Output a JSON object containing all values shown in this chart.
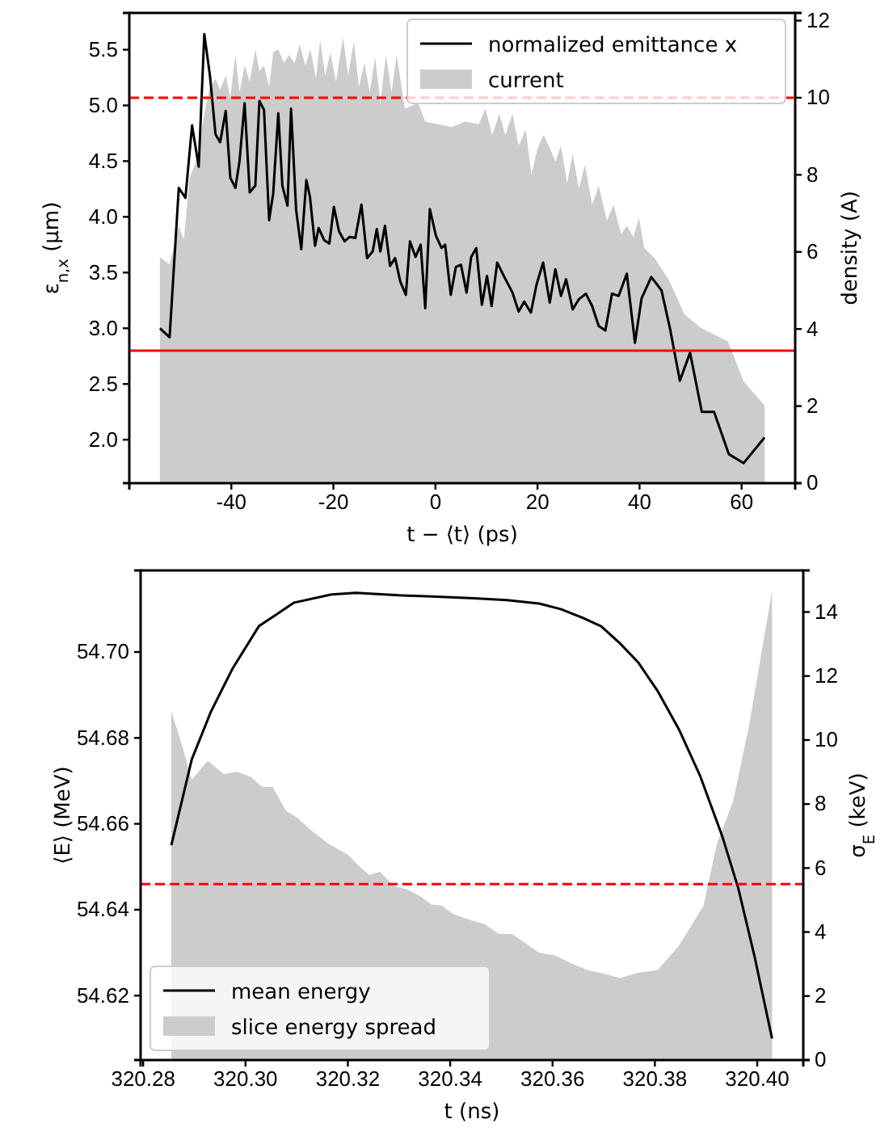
{
  "chart_data": [
    {
      "type": "line",
      "xlabel": "t − ⟨t⟩ (ps)",
      "ylabel": "ε$_{n,x}$ (µm)",
      "y2label": "density (A)",
      "legend": "top right",
      "xlim": [
        -60,
        70.5
      ],
      "xticks": [
        -40,
        -20,
        0,
        20,
        40,
        60
      ],
      "ylim": [
        1.61,
        5.83
      ],
      "yticks": [
        {
          "value": 2,
          "label": "2.0"
        },
        2.5,
        {
          "value": 3,
          "label": "3.0"
        },
        3.5,
        {
          "value": 4,
          "label": "4.0"
        },
        4.5,
        {
          "value": 5,
          "label": "5.0"
        },
        5.5
      ],
      "y2lim": [
        0,
        12.2
      ],
      "y2ticks": [
        0,
        2,
        4,
        6,
        8,
        10,
        12
      ],
      "ref_lines": [
        {
          "axis": "y2",
          "value": 10,
          "color": "#ff0000",
          "line_style": "dashed"
        },
        {
          "axis": "y",
          "value": 2.8,
          "color": "#ff0000",
          "line_style": "solid"
        }
      ],
      "series": [
        {
          "name": "current",
          "type": "area",
          "axis": "y2",
          "color": "#cccccc",
          "x": [
            -54.0,
            -52.1,
            -50.3,
            -49.3,
            -48.2,
            -46.6,
            -45.3,
            -44.2,
            -43.1,
            -42.2,
            -41.1,
            -40.2,
            -39.2,
            -38.4,
            -37.4,
            -36.4,
            -35.3,
            -34.5,
            -33.6,
            -32.6,
            -31.8,
            -30.8,
            -29.7,
            -28.7,
            -27.6,
            -26.6,
            -25.5,
            -24.5,
            -23.4,
            -22.6,
            -21.6,
            -20.6,
            -19.5,
            -18.1,
            -17.1,
            -16.0,
            -15.0,
            -13.9,
            -12.9,
            -11.8,
            -10.8,
            -9.7,
            -8.6,
            -7.6,
            -6.0,
            -3.4,
            -2.0,
            0.5,
            3.2,
            5.8,
            8.5,
            9.8,
            11.1,
            12.5,
            13.7,
            15.1,
            16.3,
            17.7,
            18.8,
            20.0,
            21.2,
            22.5,
            23.5,
            24.6,
            25.8,
            26.9,
            28.1,
            29.3,
            30.7,
            32.0,
            33.6,
            34.9,
            36.4,
            37.5,
            38.8,
            39.9,
            40.9,
            43.0,
            45.7,
            48.8,
            52.0,
            57.3,
            60.4,
            64.5
          ],
          "values": [
            5.86,
            5.67,
            6.67,
            6.32,
            7.92,
            8.47,
            9.58,
            10.28,
            10.49,
            10.21,
            10.56,
            10.0,
            11.11,
            10.14,
            10.83,
            10.42,
            11.25,
            10.69,
            10.83,
            10.28,
            11.18,
            11.25,
            10.9,
            11.11,
            10.9,
            11.39,
            10.83,
            11.25,
            10.49,
            11.5,
            10.56,
            11.18,
            10.42,
            11.56,
            10.56,
            11.46,
            10.28,
            10.9,
            10.14,
            11.04,
            9.86,
            11.11,
            10.14,
            11.11,
            9.72,
            9.86,
            9.38,
            9.31,
            9.24,
            9.38,
            9.31,
            9.72,
            9.03,
            9.58,
            9.03,
            9.58,
            8.75,
            9.17,
            7.99,
            8.68,
            9.03,
            8.68,
            8.33,
            8.75,
            7.78,
            8.54,
            7.64,
            8.26,
            7.22,
            7.71,
            6.81,
            7.22,
            6.46,
            6.67,
            6.39,
            6.88,
            6.11,
            5.83,
            5.28,
            4.38,
            4.03,
            3.68,
            2.64,
            2.01
          ]
        },
        {
          "name": "normalized emittance x",
          "axis": "y",
          "color": "#000000",
          "x": [
            -54.0,
            -52.1,
            -50.3,
            -49.0,
            -47.7,
            -46.4,
            -45.3,
            -44.2,
            -43.1,
            -42.2,
            -41.1,
            -40.2,
            -39.2,
            -38.4,
            -37.4,
            -36.4,
            -35.3,
            -34.5,
            -33.6,
            -32.6,
            -31.8,
            -30.8,
            -30.0,
            -29.0,
            -28.3,
            -27.3,
            -26.3,
            -25.3,
            -24.6,
            -23.6,
            -22.9,
            -21.8,
            -20.8,
            -19.9,
            -18.9,
            -17.8,
            -16.8,
            -15.7,
            -14.5,
            -13.4,
            -12.3,
            -11.5,
            -10.8,
            -9.9,
            -8.9,
            -7.9,
            -6.9,
            -5.8,
            -5.0,
            -3.9,
            -2.9,
            -2.0,
            -1.1,
            0.1,
            1.2,
            1.9,
            3.0,
            4.0,
            5.0,
            6.1,
            7.0,
            8.0,
            9.1,
            10.1,
            11.0,
            12.1,
            13.5,
            15.1,
            16.3,
            17.4,
            18.7,
            19.8,
            21.1,
            22.4,
            23.5,
            24.6,
            25.6,
            26.9,
            28.1,
            29.5,
            30.7,
            32.0,
            33.3,
            34.6,
            35.9,
            37.5,
            39.1,
            40.4,
            42.3,
            44.3,
            46.0,
            47.9,
            49.9,
            52.2,
            54.6,
            57.5,
            60.4,
            64.5
          ],
          "values": [
            3.0,
            2.92,
            4.26,
            4.17,
            4.82,
            4.45,
            5.64,
            5.27,
            4.74,
            4.67,
            4.95,
            4.35,
            4.26,
            4.5,
            5.02,
            4.22,
            4.28,
            5.04,
            4.96,
            3.97,
            4.21,
            4.93,
            4.28,
            4.1,
            4.97,
            4.06,
            3.71,
            4.33,
            4.18,
            3.74,
            3.9,
            3.79,
            3.76,
            4.09,
            3.87,
            3.78,
            3.82,
            3.81,
            4.11,
            3.63,
            3.69,
            3.89,
            3.69,
            3.92,
            3.56,
            3.63,
            3.42,
            3.3,
            3.78,
            3.64,
            3.75,
            3.18,
            4.07,
            3.83,
            3.72,
            3.75,
            3.3,
            3.55,
            3.57,
            3.32,
            3.64,
            3.72,
            3.21,
            3.47,
            3.2,
            3.59,
            3.46,
            3.32,
            3.15,
            3.24,
            3.14,
            3.39,
            3.59,
            3.23,
            3.53,
            3.29,
            3.44,
            3.17,
            3.26,
            3.31,
            3.2,
            3.02,
            2.98,
            3.31,
            3.29,
            3.49,
            2.87,
            3.27,
            3.46,
            3.34,
            2.99,
            2.53,
            2.78,
            2.25,
            2.25,
            1.87,
            1.79,
            2.02
          ]
        }
      ]
    },
    {
      "type": "line",
      "xlabel": "t (ns)",
      "ylabel": "⟨E⟩ (MeV)",
      "y2label": "σ$_{E}$ (keV)",
      "legend": "bottom left",
      "xlim": [
        320.2795,
        320.409
      ],
      "xticks": [
        {
          "value": 320.28,
          "label": "320.28"
        },
        {
          "value": 320.3,
          "label": "320.30"
        },
        {
          "value": 320.32,
          "label": "320.32"
        },
        {
          "value": 320.34,
          "label": "320.34"
        },
        {
          "value": 320.36,
          "label": "320.36"
        },
        {
          "value": 320.38,
          "label": "320.38"
        },
        {
          "value": 320.4,
          "label": "320.40"
        }
      ],
      "ylim": [
        54.605,
        54.719
      ],
      "yticks": [
        {
          "value": 54.62,
          "label": "54.62"
        },
        {
          "value": 54.64,
          "label": "54.64"
        },
        {
          "value": 54.66,
          "label": "54.66"
        },
        {
          "value": 54.68,
          "label": "54.68"
        },
        {
          "value": 54.7,
          "label": "54.70"
        }
      ],
      "y2lim": [
        0,
        15.3
      ],
      "y2ticks": [
        0,
        2,
        4,
        6,
        8,
        10,
        12,
        14
      ],
      "ref_lines": [
        {
          "axis": "y2",
          "value": 5.5,
          "color": "#ff0000",
          "line_style": "dashed"
        }
      ],
      "series": [
        {
          "name": "slice energy spread",
          "type": "area",
          "axis": "y2",
          "color": "#cccccc",
          "x": [
            320.2855,
            320.2874,
            320.2895,
            320.2926,
            320.2958,
            320.2984,
            320.3011,
            320.3032,
            320.3053,
            320.3079,
            320.31,
            320.3126,
            320.3163,
            320.32,
            320.3221,
            320.3242,
            320.3263,
            320.3289,
            320.3316,
            320.3342,
            320.3363,
            320.3384,
            320.3405,
            320.3432,
            320.3468,
            320.3495,
            320.3521,
            320.3547,
            320.3574,
            320.3605,
            320.3637,
            320.3668,
            320.37,
            320.3732,
            320.3768,
            320.3805,
            320.3847,
            320.3895,
            320.3921,
            320.3953,
            320.3984,
            320.4029
          ],
          "values": [
            10.9,
            9.93,
            8.76,
            9.35,
            8.93,
            9.01,
            8.84,
            8.54,
            8.54,
            7.79,
            7.59,
            7.21,
            6.75,
            6.42,
            6.08,
            5.78,
            5.88,
            5.45,
            5.33,
            5.11,
            4.86,
            4.82,
            4.57,
            4.41,
            4.24,
            3.94,
            3.94,
            3.65,
            3.35,
            3.27,
            3.02,
            2.81,
            2.7,
            2.56,
            2.73,
            2.81,
            3.57,
            4.82,
            6.75,
            8.09,
            10.44,
            14.66
          ]
        },
        {
          "name": "mean energy",
          "axis": "y",
          "color": "#000000",
          "x": [
            320.2855,
            320.2895,
            320.2932,
            320.2974,
            320.3026,
            320.3095,
            320.3168,
            320.3216,
            320.33,
            320.3374,
            320.3447,
            320.3511,
            320.3574,
            320.3616,
            320.3658,
            320.3695,
            320.3732,
            320.3768,
            320.3805,
            320.3847,
            320.3889,
            320.3932,
            320.3963,
            320.3995,
            320.4029
          ],
          "values": [
            54.655,
            54.675,
            54.686,
            54.696,
            54.706,
            54.7115,
            54.7134,
            54.7138,
            54.7132,
            54.7129,
            54.7125,
            54.7121,
            54.7113,
            54.71,
            54.708,
            54.706,
            54.702,
            54.6975,
            54.691,
            54.682,
            54.671,
            54.657,
            54.645,
            54.629,
            54.61
          ]
        }
      ]
    }
  ]
}
